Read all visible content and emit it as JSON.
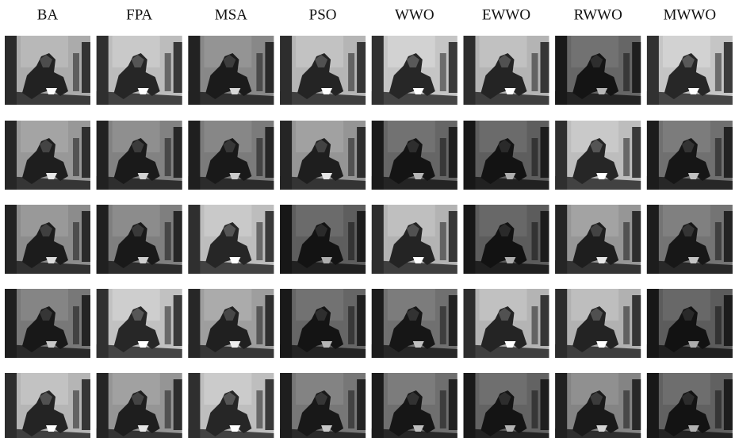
{
  "columns": [
    "BA",
    "FPA",
    "MSA",
    "PSO",
    "WWO",
    "EWWO",
    "RWWO",
    "MWWO"
  ]
}
